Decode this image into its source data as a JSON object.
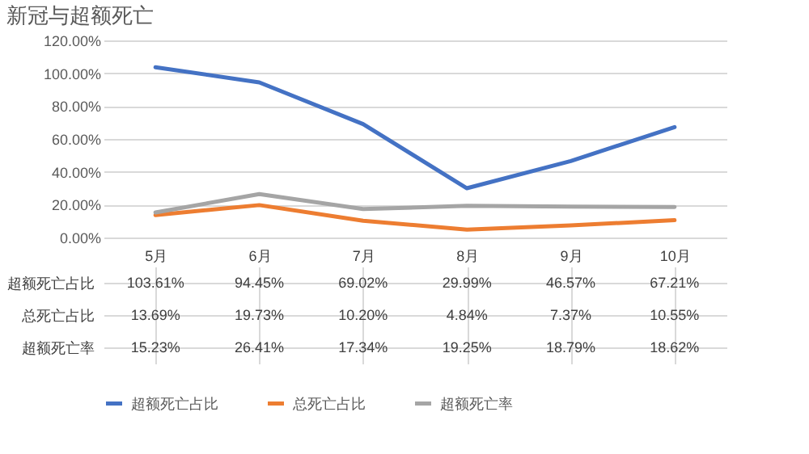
{
  "chart_data": {
    "type": "line",
    "title": "新冠与超额死亡",
    "categories": [
      "5月",
      "6月",
      "7月",
      "8月",
      "9月",
      "10月"
    ],
    "series": [
      {
        "name": "超额死亡占比",
        "color": "#4472c4",
        "values": [
          103.61,
          94.45,
          69.02,
          29.99,
          46.57,
          67.21
        ],
        "value_labels": [
          "103.61%",
          "94.45%",
          "69.02%",
          "29.99%",
          "46.57%",
          "67.21%"
        ]
      },
      {
        "name": "总死亡占比",
        "color": "#ed7d31",
        "values": [
          13.69,
          19.73,
          10.2,
          4.84,
          7.37,
          10.55
        ],
        "value_labels": [
          "13.69%",
          "19.73%",
          "10.20%",
          "4.84%",
          "7.37%",
          "10.55%"
        ]
      },
      {
        "name": "超额死亡率",
        "color": "#a5a5a5",
        "values": [
          15.23,
          26.41,
          17.34,
          19.25,
          18.79,
          18.62
        ],
        "value_labels": [
          "15.23%",
          "26.41%",
          "17.34%",
          "19.25%",
          "18.79%",
          "18.62%"
        ]
      }
    ],
    "ylim": [
      0,
      120
    ],
    "yticks": [
      {
        "value": 0,
        "label": "0.00%"
      },
      {
        "value": 20,
        "label": "20.00%"
      },
      {
        "value": 40,
        "label": "40.00%"
      },
      {
        "value": 60,
        "label": "60.00%"
      },
      {
        "value": 80,
        "label": "80.00%"
      },
      {
        "value": 100,
        "label": "100.00%"
      },
      {
        "value": 120,
        "label": "120.00%"
      }
    ],
    "grid": "y",
    "legend": "bottom",
    "marker": "none",
    "line_style": "solid"
  }
}
